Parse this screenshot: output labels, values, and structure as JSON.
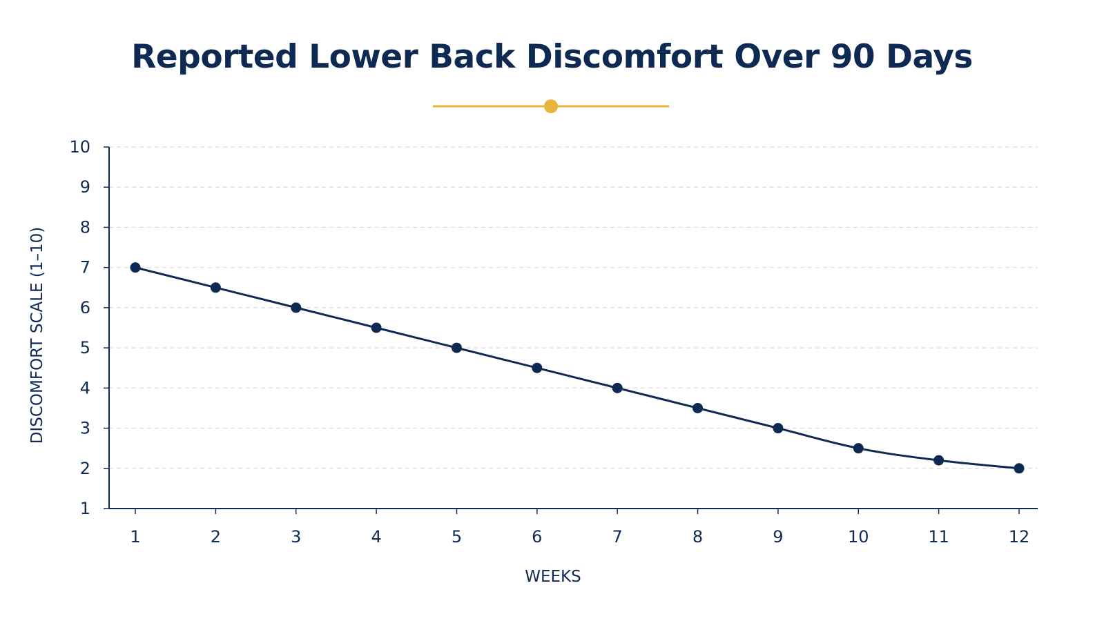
{
  "chart_data": {
    "type": "line",
    "title": "Reported Lower Back Discomfort Over 90 Days",
    "xlabel": "WEEKS",
    "ylabel": "DISCOMFORT SCALE (1–10)",
    "x": [
      1,
      2,
      3,
      4,
      5,
      6,
      7,
      8,
      9,
      10,
      11,
      12
    ],
    "y": [
      7.0,
      6.5,
      6.0,
      5.5,
      5.0,
      4.5,
      4.0,
      3.5,
      3.0,
      2.5,
      2.2,
      2.0
    ],
    "xticks": [
      "1",
      "2",
      "3",
      "4",
      "5",
      "6",
      "7",
      "8",
      "9",
      "10",
      "11",
      "12"
    ],
    "yticks": [
      "1",
      "2",
      "3",
      "4",
      "5",
      "6",
      "7",
      "8",
      "9",
      "10"
    ],
    "xlim": [
      1,
      12
    ],
    "ylim": [
      1,
      10
    ],
    "grid": "horizontal dashed",
    "legend": "none"
  },
  "colors": {
    "line": "#0f2a52",
    "marker": "#0f2a52",
    "title": "#0f2a52",
    "accent": "#e8b53c",
    "grid": "#d9d9d9",
    "axis": "#0f2a52"
  },
  "decor": {
    "title_divider_icon": "gold-dot-divider"
  }
}
